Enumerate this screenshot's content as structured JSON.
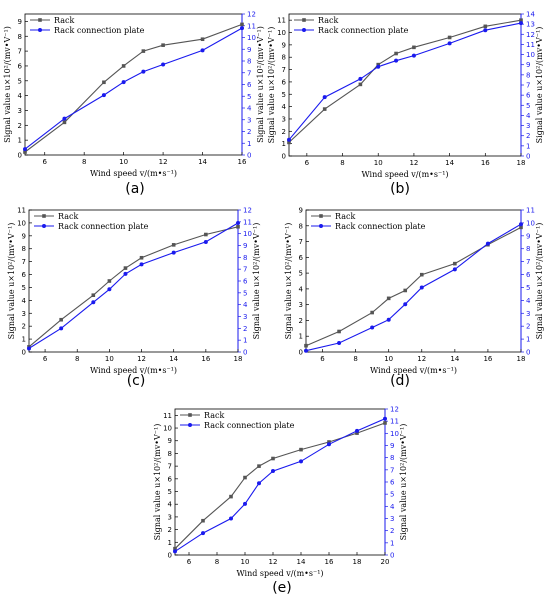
{
  "colors": {
    "rack": "#555555",
    "plate": "#1a1aee",
    "axis": "#000000",
    "right_axis": "#1a1aee"
  },
  "chart_data": [
    {
      "type": "line",
      "panel_label": "(a)",
      "xlabel": "Wind speed v/(m•s⁻¹)",
      "ylabel_left": "Signal value u×10²/(mv•V⁻¹)",
      "ylabel_right": "Signal value u×10²/(mv•V⁻¹)",
      "xlim": [
        5,
        16
      ],
      "xticks": [
        6,
        8,
        10,
        12,
        14,
        16
      ],
      "ylim_left": [
        0,
        9.5
      ],
      "yticks_left": [
        0,
        1,
        2,
        3,
        4,
        5,
        6,
        7,
        8,
        9
      ],
      "ylim_right": [
        0,
        12
      ],
      "yticks_right": [
        0,
        1,
        2,
        3,
        4,
        5,
        6,
        7,
        8,
        9,
        10,
        11,
        12
      ],
      "legend": "top-left",
      "series": [
        {
          "name": "Rack",
          "axis": "left",
          "x": [
            5,
            7,
            9,
            10,
            11,
            12,
            14,
            16
          ],
          "y": [
            0.2,
            2.2,
            4.9,
            6.0,
            7.0,
            7.4,
            7.8,
            8.8
          ]
        },
        {
          "name": "Rack connection plate",
          "axis": "right",
          "x": [
            5,
            7,
            9,
            10,
            11,
            12,
            14,
            16
          ],
          "y": [
            0.5,
            3.1,
            5.1,
            6.2,
            7.1,
            7.7,
            8.9,
            10.8
          ]
        }
      ]
    },
    {
      "type": "line",
      "panel_label": "(b)",
      "xlabel": "Wind speed v/(m•s⁻¹)",
      "ylabel_left": "Signal value u×10²/(mv•V⁻¹)",
      "ylabel_right": "Signal value u×10²/(mv•V⁻¹)",
      "xlim": [
        5,
        18
      ],
      "xticks": [
        6,
        8,
        10,
        12,
        14,
        16,
        18
      ],
      "ylim_left": [
        0,
        11.5
      ],
      "yticks_left": [
        0,
        1,
        2,
        3,
        4,
        5,
        6,
        7,
        8,
        9,
        10,
        11
      ],
      "ylim_right": [
        0,
        14
      ],
      "yticks_right": [
        0,
        1,
        2,
        3,
        4,
        5,
        6,
        7,
        8,
        9,
        10,
        11,
        12,
        13,
        14
      ],
      "legend": "top-left",
      "series": [
        {
          "name": "Rack",
          "axis": "left",
          "x": [
            5,
            7,
            9,
            10,
            11,
            12,
            14,
            16,
            18
          ],
          "y": [
            1.1,
            3.8,
            5.8,
            7.4,
            8.3,
            8.8,
            9.6,
            10.5,
            11.0
          ]
        },
        {
          "name": "Rack connection plate",
          "axis": "right",
          "x": [
            5,
            7,
            9,
            10,
            11,
            12,
            14,
            16,
            18
          ],
          "y": [
            1.6,
            5.8,
            7.6,
            8.8,
            9.4,
            9.9,
            11.1,
            12.4,
            13.1
          ]
        }
      ]
    },
    {
      "type": "line",
      "panel_label": "(c)",
      "xlabel": "Wind speed v/(m•s⁻¹)",
      "ylabel_left": "Signal value u×10²/(mv•V⁻¹)",
      "ylabel_right": "Signal value u×10²/(mv•V⁻¹)",
      "xlim": [
        5,
        18
      ],
      "xticks": [
        6,
        8,
        10,
        12,
        14,
        16,
        18
      ],
      "ylim_left": [
        0,
        11
      ],
      "yticks_left": [
        0,
        1,
        2,
        3,
        4,
        5,
        6,
        7,
        8,
        9,
        10,
        11
      ],
      "ylim_right": [
        0,
        12
      ],
      "yticks_right": [
        0,
        1,
        2,
        3,
        4,
        5,
        6,
        7,
        8,
        9,
        10,
        11,
        12
      ],
      "legend": "top-left",
      "series": [
        {
          "name": "Rack",
          "axis": "left",
          "x": [
            5,
            7,
            9,
            10,
            11,
            12,
            14,
            16,
            18
          ],
          "y": [
            0.4,
            2.5,
            4.4,
            5.5,
            6.5,
            7.3,
            8.3,
            9.1,
            9.7
          ]
        },
        {
          "name": "Rack connection plate",
          "axis": "right",
          "x": [
            5,
            7,
            9,
            10,
            11,
            12,
            14,
            16,
            18
          ],
          "y": [
            0.3,
            2.0,
            4.2,
            5.3,
            6.6,
            7.4,
            8.4,
            9.3,
            10.9
          ]
        }
      ]
    },
    {
      "type": "line",
      "panel_label": "(d)",
      "xlabel": "Wind speed v/(m•s⁻¹)",
      "ylabel_left": "Signal value u×10²/(mv•V⁻¹)",
      "ylabel_right": "Signal value u×10²/(mv•V⁻¹)",
      "xlim": [
        5,
        18
      ],
      "xticks": [
        6,
        8,
        10,
        12,
        14,
        16,
        18
      ],
      "ylim_left": [
        0,
        9
      ],
      "yticks_left": [
        0,
        1,
        2,
        3,
        4,
        5,
        6,
        7,
        8,
        9
      ],
      "ylim_right": [
        0,
        11
      ],
      "yticks_right": [
        0,
        1,
        2,
        3,
        4,
        5,
        6,
        7,
        8,
        9,
        10,
        11
      ],
      "legend": "top-left",
      "series": [
        {
          "name": "Rack",
          "axis": "left",
          "x": [
            5,
            7,
            9,
            10,
            11,
            12,
            14,
            16,
            18
          ],
          "y": [
            0.4,
            1.3,
            2.5,
            3.4,
            3.9,
            4.9,
            5.6,
            6.8,
            7.9
          ]
        },
        {
          "name": "Rack connection plate",
          "axis": "right",
          "x": [
            5,
            7,
            9,
            10,
            11,
            12,
            14,
            16,
            18
          ],
          "y": [
            0.1,
            0.7,
            1.9,
            2.5,
            3.7,
            5.0,
            6.4,
            8.4,
            9.9
          ]
        }
      ]
    },
    {
      "type": "line",
      "panel_label": "(e)",
      "xlabel": "Wind speed v/(m•s⁻¹)",
      "ylabel_left": "Signal value u×10²/(mv•V⁻¹)",
      "ylabel_right": "Signal value u×10²/(mv•V⁻¹)",
      "xlim": [
        5,
        20
      ],
      "xticks": [
        6,
        8,
        10,
        12,
        14,
        16,
        18,
        20
      ],
      "ylim_left": [
        0,
        11.5
      ],
      "yticks_left": [
        0,
        1,
        2,
        3,
        4,
        5,
        6,
        7,
        8,
        9,
        10,
        11
      ],
      "ylim_right": [
        0,
        12
      ],
      "yticks_right": [
        0,
        1,
        2,
        3,
        4,
        5,
        6,
        7,
        8,
        9,
        10,
        11,
        12
      ],
      "legend": "top-left",
      "series": [
        {
          "name": "Rack",
          "axis": "left",
          "x": [
            5,
            7,
            9,
            10,
            11,
            12,
            14,
            16,
            18,
            20
          ],
          "y": [
            0.5,
            2.7,
            4.6,
            6.1,
            7.0,
            7.6,
            8.3,
            8.9,
            9.6,
            10.4
          ]
        },
        {
          "name": "Rack connection plate",
          "axis": "right",
          "x": [
            5,
            7,
            9,
            10,
            11,
            12,
            14,
            16,
            18,
            20
          ],
          "y": [
            0.3,
            1.8,
            3.0,
            4.2,
            5.9,
            6.9,
            7.7,
            9.1,
            10.2,
            11.2
          ]
        }
      ]
    }
  ]
}
